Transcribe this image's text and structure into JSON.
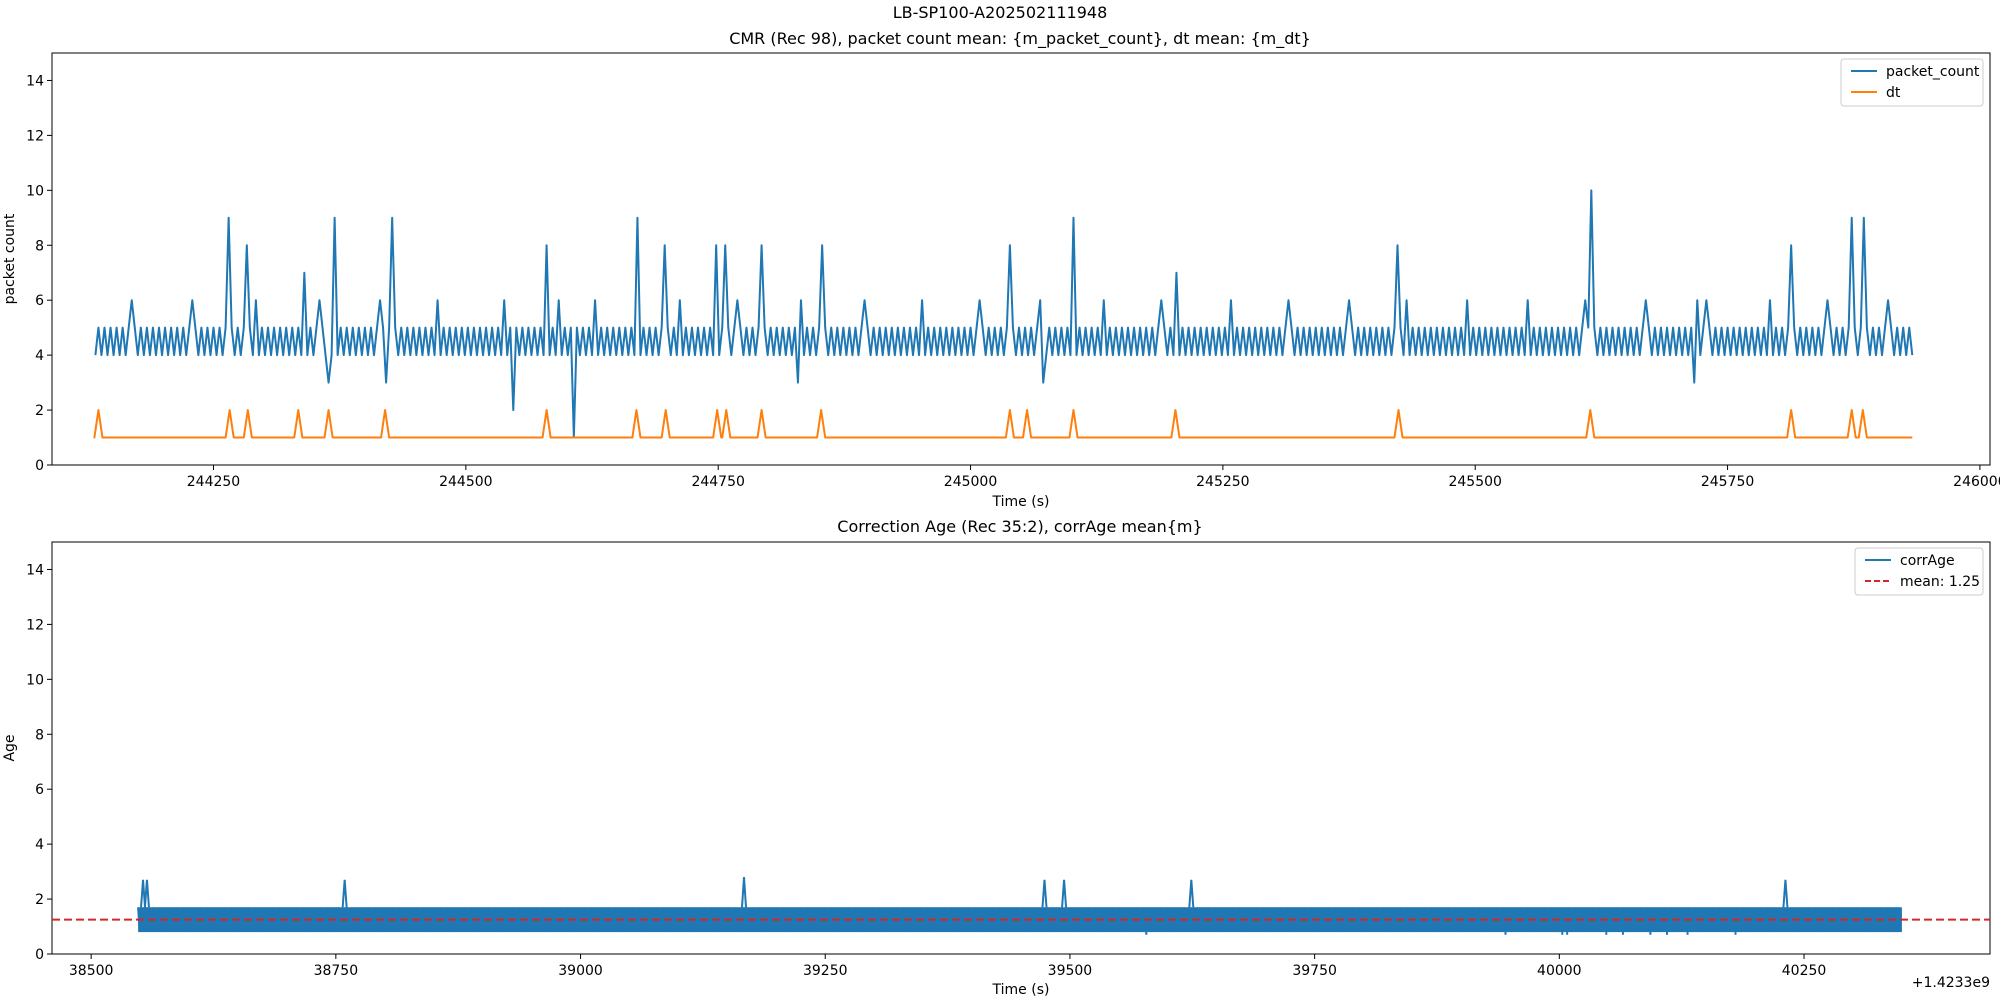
{
  "suptitle": "LB-SP100-A202502111948",
  "chart_data": [
    {
      "type": "line",
      "title": "CMR (Rec 98), packet count mean: {m_packet_count}, dt mean: {m_dt}",
      "xlabel": "Time (s)",
      "ylabel": "packet count",
      "xlim": [
        244090,
        246010
      ],
      "ylim": [
        0,
        15
      ],
      "xticks": [
        244250,
        244500,
        244750,
        245000,
        245250,
        245500,
        245750,
        246000
      ],
      "xtick_labels": [
        "244250",
        "244500",
        "244750",
        "245000",
        "245250",
        "245500",
        "245750",
        "246000"
      ],
      "yticks": [
        0,
        2,
        4,
        6,
        8,
        10,
        12,
        14
      ],
      "ytick_labels": [
        "0",
        "2",
        "4",
        "6",
        "8",
        "10",
        "12",
        "14"
      ],
      "legend": "top-right",
      "grid": false,
      "series": [
        {
          "name": "packet_count",
          "color": "#1f77b4",
          "pattern": "oscillation between 4 and 5 every ~6 s",
          "x_range": [
            244133,
            245933
          ],
          "base": [
            4,
            5
          ],
          "spikes": [
            [
              244170,
              6
            ],
            [
              244228,
              6
            ],
            [
              244266,
              9
            ],
            [
              244284,
              8
            ],
            [
              244292,
              6
            ],
            [
              244340,
              7
            ],
            [
              244354,
              6
            ],
            [
              244364,
              3
            ],
            [
              244370,
              9
            ],
            [
              244416,
              6
            ],
            [
              244422,
              3
            ],
            [
              244426,
              9
            ],
            [
              244473,
              6
            ],
            [
              244537,
              6
            ],
            [
              244547,
              7
            ],
            [
              244548,
              2
            ],
            [
              244580,
              8
            ],
            [
              244592,
              6
            ],
            [
              244606,
              7
            ],
            [
              244607,
              1
            ],
            [
              244628,
              6
            ],
            [
              244669,
              9
            ],
            [
              244698,
              8
            ],
            [
              244712,
              6
            ],
            [
              244749,
              8
            ],
            [
              244758,
              8
            ],
            [
              244770,
              6
            ],
            [
              244793,
              8
            ],
            [
              244830,
              3
            ],
            [
              244832,
              6
            ],
            [
              244852,
              8
            ],
            [
              244894,
              6
            ],
            [
              244953,
              6
            ],
            [
              245010,
              6
            ],
            [
              245039,
              8
            ],
            [
              245070,
              6
            ],
            [
              245072,
              3
            ],
            [
              245102,
              9
            ],
            [
              245132,
              6
            ],
            [
              245189,
              6
            ],
            [
              245203,
              7
            ],
            [
              245258,
              6
            ],
            [
              245316,
              6
            ],
            [
              245375,
              6
            ],
            [
              245424,
              8
            ],
            [
              245433,
              6
            ],
            [
              245492,
              6
            ],
            [
              245551,
              6
            ],
            [
              245610,
              6
            ],
            [
              245614,
              10
            ],
            [
              245669,
              6
            ],
            [
              245718,
              3
            ],
            [
              245720,
              6
            ],
            [
              245730,
              6
            ],
            [
              245791,
              6
            ],
            [
              245813,
              8
            ],
            [
              245849,
              6
            ],
            [
              245873,
              9
            ],
            [
              245884,
              9
            ],
            [
              245910,
              6
            ]
          ]
        },
        {
          "name": "dt",
          "color": "#ff7f0e",
          "base_value": 1,
          "x_range": [
            244133,
            245933
          ],
          "spikes": [
            [
              244136,
              2
            ],
            [
              244266,
              2
            ],
            [
              244284,
              2
            ],
            [
              244334,
              2
            ],
            [
              244364,
              2
            ],
            [
              244420,
              2
            ],
            [
              244580,
              2
            ],
            [
              244669,
              2
            ],
            [
              244698,
              2
            ],
            [
              244749,
              2
            ],
            [
              244758,
              2
            ],
            [
              244793,
              2
            ],
            [
              244852,
              2
            ],
            [
              245039,
              2
            ],
            [
              245056,
              2
            ],
            [
              245102,
              2
            ],
            [
              245203,
              2
            ],
            [
              245424,
              2
            ],
            [
              245614,
              2
            ],
            [
              245813,
              2
            ],
            [
              245873,
              2
            ],
            [
              245884,
              2
            ]
          ]
        }
      ]
    },
    {
      "type": "line",
      "title": "Correction Age (Rec 35:2), corrAge mean{m}",
      "xlabel": "Time (s)",
      "ylabel": "Age",
      "offset_label": "+1.4233e9",
      "xlim": [
        38460,
        40440
      ],
      "ylim": [
        0,
        15
      ],
      "xticks": [
        38500,
        38750,
        39000,
        39250,
        39500,
        39750,
        40000,
        40250
      ],
      "xtick_labels": [
        "38500",
        "38750",
        "39000",
        "39250",
        "39500",
        "39750",
        "40000",
        "40250"
      ],
      "yticks": [
        0,
        2,
        4,
        6,
        8,
        10,
        12,
        14
      ],
      "ytick_labels": [
        "0",
        "2",
        "4",
        "6",
        "8",
        "10",
        "12",
        "14"
      ],
      "legend": "top-right",
      "grid": false,
      "series": [
        {
          "name": "corrAge",
          "color": "#1f77b4",
          "pattern": "dense oscillation between 0.8 and 1.7",
          "x_range": [
            38548,
            40350
          ],
          "band": [
            0.8,
            1.7
          ],
          "spikes": [
            [
              38553,
              2.7
            ],
            [
              38557,
              2.7
            ],
            [
              38759,
              2.7
            ],
            [
              39167,
              2.8
            ],
            [
              39474,
              2.7
            ],
            [
              39494,
              2.7
            ],
            [
              39624,
              2.7
            ],
            [
              40231,
              2.7
            ]
          ],
          "dips": [
            [
              39578,
              0.7
            ],
            [
              39945,
              0.7
            ],
            [
              40003,
              0.7
            ],
            [
              40008,
              0.7
            ],
            [
              40048,
              0.7
            ],
            [
              40065,
              0.7
            ],
            [
              40093,
              0.7
            ],
            [
              40110,
              0.7
            ],
            [
              40131,
              0.7
            ],
            [
              40180,
              0.7
            ]
          ]
        },
        {
          "name": "mean: 1.25",
          "color": "#d62728",
          "style": "dashed",
          "value": 1.25
        }
      ]
    }
  ]
}
